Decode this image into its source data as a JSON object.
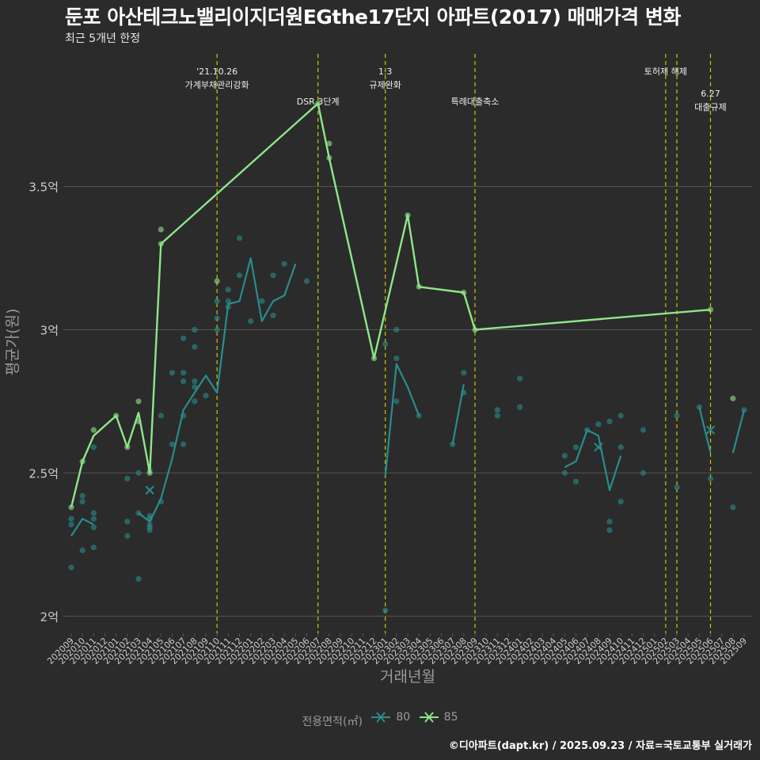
{
  "title": "둔포 아산테크노밸리이지더원EGthe17단지 아파트(2017) 매매가격 변화",
  "subtitle": "최근 5개년 한정",
  "caption": "©디아파트(dapt.kr) / 2025.09.23 / 자료=국토교통부 실거래가",
  "legend": {
    "title": "전용면적(㎡)",
    "items": [
      "80",
      "85"
    ]
  },
  "colors": {
    "s80": "#2a8c8c",
    "s85": "#8ee68a",
    "event": "#c8c800",
    "grid": "#555555",
    "text": "#cccccc"
  },
  "chart_data": {
    "type": "line",
    "xlabel": "거래년월",
    "ylabel": "평균가(원)",
    "x_categories": [
      "202009",
      "202010",
      "202011",
      "202012",
      "202101",
      "202102",
      "202103",
      "202104",
      "202105",
      "202106",
      "202107",
      "202108",
      "202109",
      "202110",
      "202111",
      "202112",
      "202201",
      "202202",
      "202203",
      "202204",
      "202205",
      "202206",
      "202207",
      "202208",
      "202209",
      "202210",
      "202211",
      "202212",
      "202301",
      "202302",
      "202303",
      "202304",
      "202305",
      "202306",
      "202307",
      "202308",
      "202309",
      "202310",
      "202311",
      "202312",
      "202401",
      "202402",
      "202403",
      "202404",
      "202405",
      "202406",
      "202407",
      "202408",
      "202409",
      "202410",
      "202411",
      "202412",
      "202501",
      "202502",
      "202503",
      "202504",
      "202505",
      "202506",
      "202507",
      "202508",
      "202509"
    ],
    "y_ticks": [
      {
        "v": 2.0,
        "label": "2억"
      },
      {
        "v": 2.5,
        "label": "2.5억"
      },
      {
        "v": 3.0,
        "label": "3억"
      },
      {
        "v": 3.5,
        "label": "3.5억"
      }
    ],
    "ylim": [
      1.94,
      3.98
    ],
    "events": [
      {
        "x": "202110",
        "lines": [
          "'21.10.26",
          "가계부채관리강화"
        ],
        "row": 1
      },
      {
        "x": "202207",
        "lines": [
          "DSR 3단계"
        ],
        "row": 2
      },
      {
        "x": "202301",
        "lines": [
          "1.3",
          "규제완화"
        ],
        "row": 1
      },
      {
        "x": "202309",
        "lines": [
          "특례대출축소"
        ],
        "row": 2
      },
      {
        "x": "202502",
        "lines": [
          "토허제 해제"
        ],
        "row": 1
      },
      {
        "x": "202503",
        "lines": [],
        "row": 1
      },
      {
        "x": "202506",
        "lines": [
          "6.27",
          "대출규제"
        ],
        "row": 3
      }
    ],
    "series": [
      {
        "name": "80",
        "segments": [
          [
            [
              "202009",
              2.28
            ],
            [
              "202010",
              2.34
            ],
            [
              "202011",
              2.32
            ]
          ],
          [
            [
              "202103",
              2.36
            ],
            [
              "202104",
              2.33
            ],
            [
              "202105",
              2.41
            ],
            [
              "202106",
              2.55
            ],
            [
              "202107",
              2.72
            ],
            [
              "202108",
              2.78
            ],
            [
              "202109",
              2.84
            ],
            [
              "202110",
              2.78
            ],
            [
              "202111",
              3.09
            ],
            [
              "202112",
              3.1
            ],
            [
              "202201",
              3.25
            ],
            [
              "202202",
              3.03
            ],
            [
              "202203",
              3.1
            ],
            [
              "202204",
              3.12
            ],
            [
              "202205",
              3.23
            ]
          ],
          [
            [
              "202301",
              2.49
            ],
            [
              "202302",
              2.88
            ],
            [
              "202303",
              2.8
            ],
            [
              "202304",
              2.7
            ]
          ],
          [
            [
              "202307",
              2.6
            ],
            [
              "202308",
              2.81
            ]
          ],
          [
            [
              "202405",
              2.52
            ],
            [
              "202406",
              2.54
            ],
            [
              "202407",
              2.65
            ],
            [
              "202408",
              2.63
            ],
            [
              "202409",
              2.44
            ],
            [
              "202410",
              2.56
            ]
          ],
          [
            [
              "202505",
              2.73
            ],
            [
              "202506",
              2.57
            ]
          ],
          [
            [
              "202508",
              2.57
            ],
            [
              "202509",
              2.72
            ]
          ]
        ],
        "cross": [
          [
            "202104",
            2.44
          ],
          [
            "202408",
            2.59
          ],
          [
            "202506",
            2.65
          ]
        ],
        "points": [
          [
            "202009",
            2.17
          ],
          [
            "202009",
            2.32
          ],
          [
            "202009",
            2.34
          ],
          [
            "202010",
            2.23
          ],
          [
            "202010",
            2.4
          ],
          [
            "202010",
            2.42
          ],
          [
            "202011",
            2.24
          ],
          [
            "202011",
            2.31
          ],
          [
            "202011",
            2.34
          ],
          [
            "202011",
            2.36
          ],
          [
            "202011",
            2.59
          ],
          [
            "202102",
            2.28
          ],
          [
            "202102",
            2.33
          ],
          [
            "202102",
            2.48
          ],
          [
            "202103",
            2.13
          ],
          [
            "202103",
            2.36
          ],
          [
            "202103",
            2.5
          ],
          [
            "202104",
            2.3
          ],
          [
            "202104",
            2.31
          ],
          [
            "202104",
            2.32
          ],
          [
            "202104",
            2.34
          ],
          [
            "202104",
            2.35
          ],
          [
            "202104",
            2.51
          ],
          [
            "202105",
            2.4
          ],
          [
            "202105",
            2.7
          ],
          [
            "202106",
            2.6
          ],
          [
            "202106",
            2.85
          ],
          [
            "202107",
            2.6
          ],
          [
            "202107",
            2.7
          ],
          [
            "202107",
            2.82
          ],
          [
            "202107",
            2.85
          ],
          [
            "202107",
            2.97
          ],
          [
            "202108",
            2.75
          ],
          [
            "202108",
            2.8
          ],
          [
            "202108",
            2.82
          ],
          [
            "202108",
            2.94
          ],
          [
            "202108",
            3.0
          ],
          [
            "202109",
            2.77
          ],
          [
            "202110",
            3.0
          ],
          [
            "202110",
            3.04
          ],
          [
            "202110",
            3.1
          ],
          [
            "202111",
            3.08
          ],
          [
            "202111",
            3.1
          ],
          [
            "202111",
            3.14
          ],
          [
            "202112",
            3.19
          ],
          [
            "202112",
            3.32
          ],
          [
            "202201",
            3.03
          ],
          [
            "202202",
            3.1
          ],
          [
            "202203",
            3.05
          ],
          [
            "202203",
            3.19
          ],
          [
            "202204",
            3.23
          ],
          [
            "202206",
            3.17
          ],
          [
            "202301",
            2.02
          ],
          [
            "202301",
            2.95
          ],
          [
            "202302",
            2.75
          ],
          [
            "202302",
            2.9
          ],
          [
            "202302",
            3.0
          ],
          [
            "202304",
            2.7
          ],
          [
            "202307",
            2.6
          ],
          [
            "202308",
            2.78
          ],
          [
            "202308",
            2.85
          ],
          [
            "202311",
            2.7
          ],
          [
            "202311",
            2.72
          ],
          [
            "202401",
            2.73
          ],
          [
            "202401",
            2.83
          ],
          [
            "202405",
            2.5
          ],
          [
            "202405",
            2.56
          ],
          [
            "202406",
            2.47
          ],
          [
            "202406",
            2.59
          ],
          [
            "202407",
            2.65
          ],
          [
            "202408",
            2.67
          ],
          [
            "202409",
            2.3
          ],
          [
            "202409",
            2.33
          ],
          [
            "202409",
            2.68
          ],
          [
            "202410",
            2.4
          ],
          [
            "202410",
            2.59
          ],
          [
            "202410",
            2.7
          ],
          [
            "202412",
            2.5
          ],
          [
            "202412",
            2.65
          ],
          [
            "202503",
            2.45
          ],
          [
            "202503",
            2.7
          ],
          [
            "202505",
            2.73
          ],
          [
            "202506",
            2.48
          ],
          [
            "202508",
            2.38
          ],
          [
            "202509",
            2.72
          ]
        ]
      },
      {
        "name": "85",
        "segments": [
          [
            [
              "202009",
              2.38
            ],
            [
              "202010",
              2.54
            ],
            [
              "202011",
              2.63
            ],
            [
              "202101",
              2.7
            ],
            [
              "202102",
              2.59
            ],
            [
              "202103",
              2.71
            ],
            [
              "202104",
              2.5
            ],
            [
              "202105",
              3.3
            ],
            [
              "202207",
              3.79
            ],
            [
              "202208",
              3.6
            ],
            [
              "202212",
              2.9
            ],
            [
              "202303",
              3.4
            ],
            [
              "202304",
              3.15
            ],
            [
              "202308",
              3.13
            ],
            [
              "202309",
              3.0
            ],
            [
              "202506",
              3.07
            ]
          ]
        ],
        "cross": [],
        "points": [
          [
            "202009",
            2.38
          ],
          [
            "202010",
            2.54
          ],
          [
            "202011",
            2.65
          ],
          [
            "202101",
            2.7
          ],
          [
            "202102",
            2.59
          ],
          [
            "202103",
            2.68
          ],
          [
            "202103",
            2.75
          ],
          [
            "202104",
            2.5
          ],
          [
            "202105",
            3.3
          ],
          [
            "202105",
            3.35
          ],
          [
            "202110",
            3.17
          ],
          [
            "202207",
            3.79
          ],
          [
            "202208",
            3.6
          ],
          [
            "202208",
            3.65
          ],
          [
            "202212",
            2.9
          ],
          [
            "202303",
            3.4
          ],
          [
            "202304",
            3.15
          ],
          [
            "202308",
            3.13
          ],
          [
            "202309",
            3.0
          ],
          [
            "202506",
            3.07
          ],
          [
            "202508",
            2.76
          ]
        ]
      }
    ]
  }
}
